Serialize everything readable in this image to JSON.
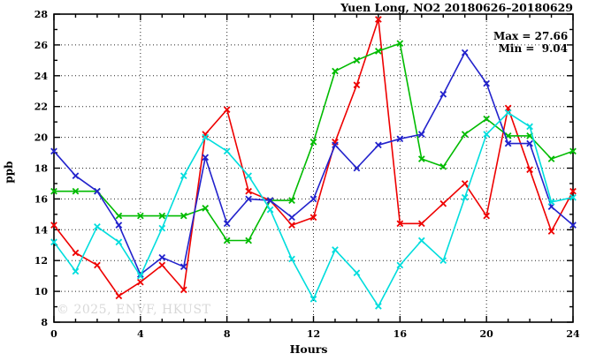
{
  "title": "Yuen Long, NO2 20180626–20180629",
  "legend": {
    "max_label": "Max = 27.66",
    "min_label": "Min =  9.04"
  },
  "watermark": "© 2025, ENVF, HKUST",
  "chart_data": {
    "type": "line",
    "title": "Yuen Long, NO2 20180626–20180629",
    "xlabel": "Hours",
    "ylabel": "ppb",
    "xlim": [
      0,
      24
    ],
    "ylim": [
      8,
      28
    ],
    "x_ticks": [
      0,
      4,
      8,
      12,
      16,
      20,
      24
    ],
    "y_ticks": [
      8,
      10,
      12,
      14,
      16,
      18,
      20,
      22,
      24,
      26,
      28
    ],
    "grid": true,
    "legend_position": "top-right-inside",
    "max": 27.66,
    "min": 9.04,
    "x": [
      0,
      1,
      2,
      3,
      4,
      5,
      6,
      7,
      8,
      9,
      10,
      11,
      12,
      13,
      14,
      15,
      16,
      17,
      18,
      19,
      20,
      21,
      22,
      23,
      24
    ],
    "series": [
      {
        "name": "series-red",
        "color": "#ee0000",
        "values": [
          14.3,
          12.5,
          11.7,
          9.7,
          10.6,
          11.7,
          10.1,
          20.2,
          21.8,
          16.5,
          15.9,
          14.3,
          14.8,
          19.7,
          23.4,
          27.66,
          14.4,
          14.4,
          15.7,
          17.0,
          14.9,
          21.9,
          17.9,
          13.9,
          16.5
        ]
      },
      {
        "name": "series-green",
        "color": "#00bb00",
        "values": [
          16.5,
          16.5,
          16.5,
          14.9,
          14.9,
          14.9,
          14.9,
          15.4,
          13.3,
          13.3,
          15.9,
          15.9,
          19.7,
          24.3,
          25.0,
          25.6,
          26.1,
          18.6,
          18.1,
          20.2,
          21.2,
          20.1,
          20.1,
          18.6,
          19.1
        ]
      },
      {
        "name": "series-blue",
        "color": "#2222cc",
        "values": [
          19.1,
          17.5,
          16.5,
          14.3,
          11.1,
          12.2,
          11.6,
          18.7,
          14.4,
          16.0,
          15.9,
          14.8,
          16.0,
          19.5,
          18.0,
          19.5,
          19.9,
          20.2,
          22.8,
          25.5,
          23.5,
          19.6,
          19.6,
          15.5,
          14.3
        ]
      },
      {
        "name": "series-cyan",
        "color": "#00dddd",
        "values": [
          13.2,
          11.3,
          14.2,
          13.2,
          11.0,
          14.1,
          17.5,
          20.0,
          19.1,
          17.5,
          15.3,
          12.1,
          9.5,
          12.7,
          11.2,
          9.04,
          11.7,
          13.3,
          12.0,
          16.1,
          20.2,
          21.6,
          20.7,
          15.8,
          16.1
        ]
      }
    ]
  }
}
